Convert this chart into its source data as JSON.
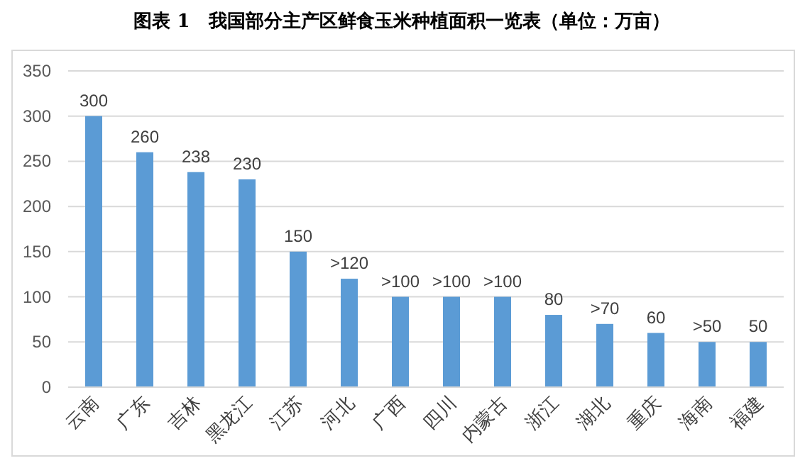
{
  "chart_data": {
    "type": "bar",
    "title": "图表 1　我国部分主产区鲜食玉米种植面积一览表（单位：万亩）",
    "categories": [
      "云南",
      "广东",
      "吉林",
      "黑龙江",
      "江苏",
      "河北",
      "广西",
      "四川",
      "内蒙古",
      "浙江",
      "湖北",
      "重庆",
      "海南",
      "福建"
    ],
    "values": [
      300,
      260,
      238,
      230,
      150,
      120,
      100,
      100,
      100,
      80,
      70,
      60,
      50,
      50
    ],
    "value_labels": [
      "300",
      "260",
      "238",
      "230",
      "150",
      ">120",
      ">100",
      ">100",
      ">100",
      "80",
      ">70",
      "60",
      ">50",
      "50"
    ],
    "color": "#5b9bd5",
    "ylim": [
      0,
      350
    ],
    "yticks": [
      0,
      50,
      100,
      150,
      200,
      250,
      300,
      350
    ],
    "grid": "y"
  }
}
